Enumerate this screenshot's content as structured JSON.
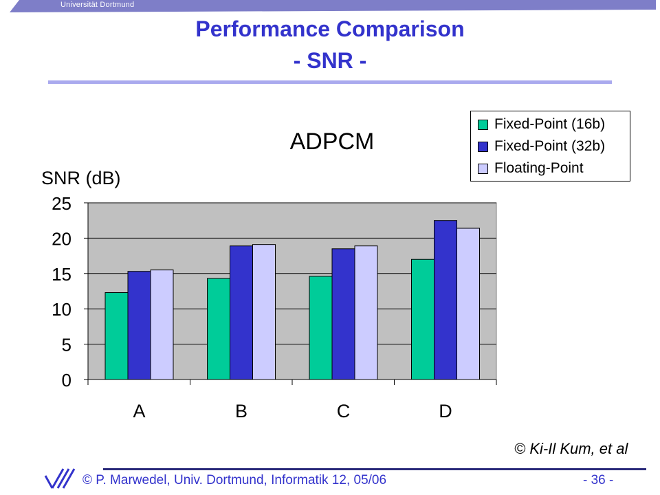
{
  "header": {
    "institution": "Universität Dortmund",
    "title_line1": "Performance Comparison",
    "title_line2": "- SNR -"
  },
  "chart_data": {
    "type": "bar",
    "title": "ADPCM",
    "ylabel": "SNR (dB)",
    "xlabel": "",
    "categories": [
      "A",
      "B",
      "C",
      "D"
    ],
    "ylim": [
      0,
      25
    ],
    "yticks": [
      0,
      5,
      10,
      15,
      20,
      25
    ],
    "grid": true,
    "legend_position": "top-right",
    "series": [
      {
        "name": "Fixed-Point (16b)",
        "values": [
          12.3,
          14.3,
          14.6,
          17.0
        ],
        "color": "#00cc99"
      },
      {
        "name": "Fixed-Point (32b)",
        "values": [
          15.3,
          18.9,
          18.5,
          22.5
        ],
        "color": "#3333cc"
      },
      {
        "name": "Floating-Point",
        "values": [
          15.5,
          19.1,
          18.9,
          21.4
        ],
        "color": "#ccccff"
      }
    ],
    "plot_background": "#c0c0c0"
  },
  "credit": "© Ki-Il Kum, et al",
  "footer": {
    "author": "© P. Marwedel, Univ. Dortmund, Informatik 12, 05/06",
    "page": "- 36 -"
  },
  "colors": {
    "title": "#3333cc",
    "accent_rule": "#aaaaee",
    "footer_line": "#2a2a7a"
  }
}
